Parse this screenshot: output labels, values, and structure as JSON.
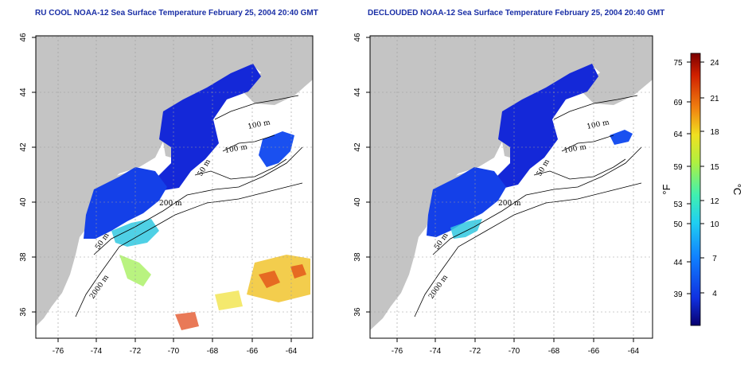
{
  "panels": [
    {
      "title": "RU COOL NOAA-12 Sea Surface Temperature February 25, 2004 20:40 GMT",
      "x_ticks": [
        "-76",
        "-74",
        "-72",
        "-70",
        "-68",
        "-66",
        "-64"
      ],
      "y_ticks": [
        "36",
        "38",
        "40",
        "42",
        "44",
        "46"
      ],
      "contour_labels": [
        "100 m",
        "100 m",
        "50 m",
        "200 m",
        "50 m",
        "2000 m"
      ]
    },
    {
      "title": "DECLOUDED NOAA-12 Sea Surface Temperature February 25, 2004 20:40 GMT",
      "x_ticks": [
        "-76",
        "-74",
        "-72",
        "-70",
        "-68",
        "-66",
        "-64"
      ],
      "y_ticks": [
        "36",
        "38",
        "40",
        "42",
        "44",
        "46"
      ],
      "contour_labels": [
        "100 m",
        "100 m",
        "50 m",
        "200 m",
        "50 m",
        "2000 m"
      ]
    }
  ],
  "colorbar": {
    "fahrenheit_ticks": [
      "75",
      "69",
      "64",
      "59",
      "53",
      "50",
      "44",
      "39"
    ],
    "celsius_ticks": [
      "24",
      "21",
      "18",
      "15",
      "12",
      "10",
      "7",
      "4"
    ],
    "fahrenheit_unit": "°F",
    "celsius_unit": "°C",
    "colors": [
      "#08006e",
      "#1030e0",
      "#1080ff",
      "#20d0f0",
      "#40f0b0",
      "#b0f040",
      "#f0e020",
      "#f08010",
      "#d02000",
      "#7a0000"
    ]
  },
  "map": {
    "land_color": "#c4c4c4",
    "cold_color": "#1428d8",
    "grid_color": "#9a9a9a"
  }
}
